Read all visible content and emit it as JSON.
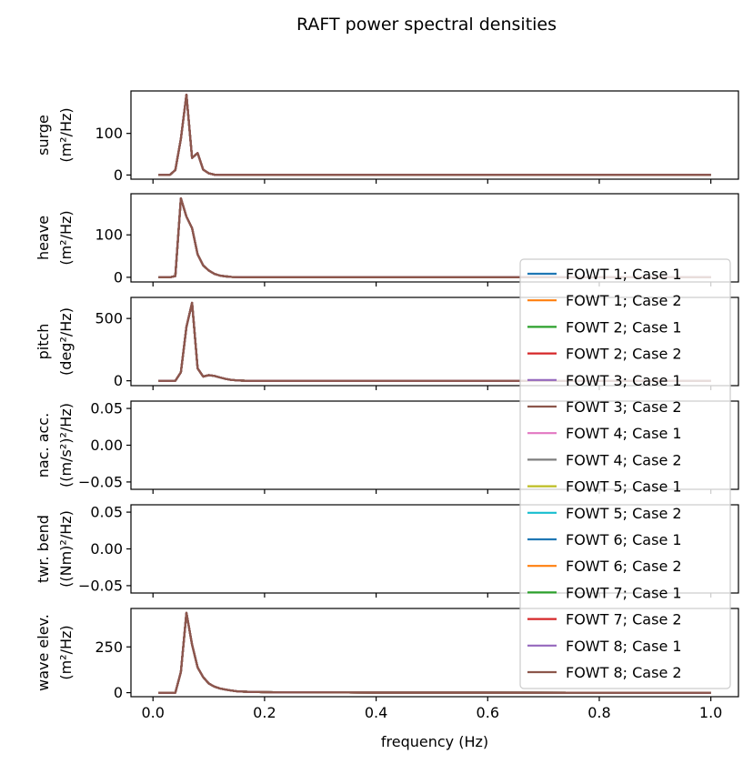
{
  "chart_data": {
    "type": "line",
    "title": "RAFT power spectral densities",
    "xlabel": "frequency (Hz)",
    "xlim": [
      -0.0395,
      1.0495
    ],
    "xticks": [
      0.0,
      0.2,
      0.4,
      0.6,
      0.8,
      1.0
    ],
    "xtick_labels": [
      "0.0",
      "0.2",
      "0.4",
      "0.6",
      "0.8",
      "1.0"
    ],
    "legend": {
      "placement": "lower-right",
      "entries": [
        "FOWT 1; Case 1",
        "FOWT 1; Case 2",
        "FOWT 2; Case 1",
        "FOWT 2; Case 2",
        "FOWT 3; Case 1",
        "FOWT 3; Case 2",
        "FOWT 4; Case 1",
        "FOWT 4; Case 2",
        "FOWT 5; Case 1",
        "FOWT 5; Case 2",
        "FOWT 6; Case 1",
        "FOWT 6; Case 2",
        "FOWT 7; Case 1",
        "FOWT 7; Case 2",
        "FOWT 8; Case 1",
        "FOWT 8; Case 2"
      ],
      "colors": [
        "#1f77b4",
        "#ff7f0e",
        "#2ca02c",
        "#d62728",
        "#9467bd",
        "#8c564b",
        "#e377c2",
        "#7f7f7f",
        "#bcbd22",
        "#17becf",
        "#1f77b4",
        "#ff7f0e",
        "#2ca02c",
        "#d62728",
        "#9467bd",
        "#8c564b"
      ]
    },
    "subplots": [
      {
        "ylabel_1": "surge",
        "ylabel_2": "(m²/Hz)",
        "ylim": [
          -10,
          202
        ],
        "yticks": [
          0,
          100
        ],
        "ytick_labels": [
          "0",
          "100"
        ],
        "x": [
          0.01,
          0.02,
          0.03,
          0.04,
          0.05,
          0.06,
          0.07,
          0.08,
          0.09,
          0.1,
          0.11,
          0.12,
          1.0
        ],
        "y": [
          0,
          0,
          0,
          12,
          87,
          193,
          41,
          53,
          13,
          4,
          1,
          0,
          0
        ]
      },
      {
        "ylabel_1": "heave",
        "ylabel_2": "(m²/Hz)",
        "ylim": [
          -11,
          197
        ],
        "yticks": [
          0,
          100
        ],
        "ytick_labels": [
          "0",
          "100"
        ],
        "x": [
          0.01,
          0.02,
          0.03,
          0.04,
          0.05,
          0.06,
          0.07,
          0.08,
          0.09,
          0.1,
          0.11,
          0.12,
          0.13,
          0.14,
          0.15,
          0.16,
          1.0
        ],
        "y": [
          0,
          0,
          0,
          3,
          186,
          143,
          116,
          54,
          28,
          16,
          8,
          4,
          2,
          1,
          0.5,
          0,
          0
        ]
      },
      {
        "ylabel_1": "pitch",
        "ylabel_2": "(deg²/Hz)",
        "ylim": [
          -39,
          669
        ],
        "yticks": [
          0,
          500
        ],
        "ytick_labels": [
          "0",
          "500"
        ],
        "x": [
          0.01,
          0.02,
          0.03,
          0.04,
          0.05,
          0.06,
          0.07,
          0.08,
          0.09,
          0.1,
          0.11,
          0.12,
          0.13,
          0.14,
          0.15,
          0.16,
          0.17,
          1.0
        ],
        "y": [
          0,
          0,
          0,
          0,
          68,
          432,
          626,
          100,
          34,
          45,
          39,
          27,
          15,
          7,
          3,
          1,
          0,
          0
        ]
      },
      {
        "ylabel_1": "nac. acc.",
        "ylabel_2": "((m/s²)²/Hz)",
        "ylim": [
          -0.06,
          0.06
        ],
        "yticks": [
          0.05,
          0.0,
          -0.05
        ],
        "ytick_labels": [
          "0.05",
          "0.00",
          "−0.05"
        ],
        "x": [],
        "y": []
      },
      {
        "ylabel_1": "twr. bend",
        "ylabel_2": "((Nm)²/Hz)",
        "ylim": [
          -0.06,
          0.06
        ],
        "yticks": [
          0.05,
          0.0,
          -0.05
        ],
        "ytick_labels": [
          "0.05",
          "0.00",
          "−0.05"
        ],
        "x": [],
        "y": []
      },
      {
        "ylabel_1": "wave elev.",
        "ylabel_2": "(m²/Hz)",
        "ylim": [
          -22,
          460
        ],
        "yticks": [
          0,
          250
        ],
        "ytick_labels": [
          "0",
          "250"
        ],
        "x": [
          0.01,
          0.02,
          0.03,
          0.04,
          0.05,
          0.06,
          0.07,
          0.08,
          0.09,
          0.1,
          0.11,
          0.12,
          0.13,
          0.14,
          0.15,
          0.16,
          0.17,
          0.18,
          0.2,
          0.25,
          0.3,
          0.4,
          1.0
        ],
        "y": [
          0,
          0,
          0,
          0,
          113,
          436,
          262,
          138,
          85,
          50,
          33,
          23,
          17,
          12,
          8,
          6,
          5,
          4,
          3,
          1.5,
          0.8,
          0.3,
          0
        ]
      }
    ]
  }
}
